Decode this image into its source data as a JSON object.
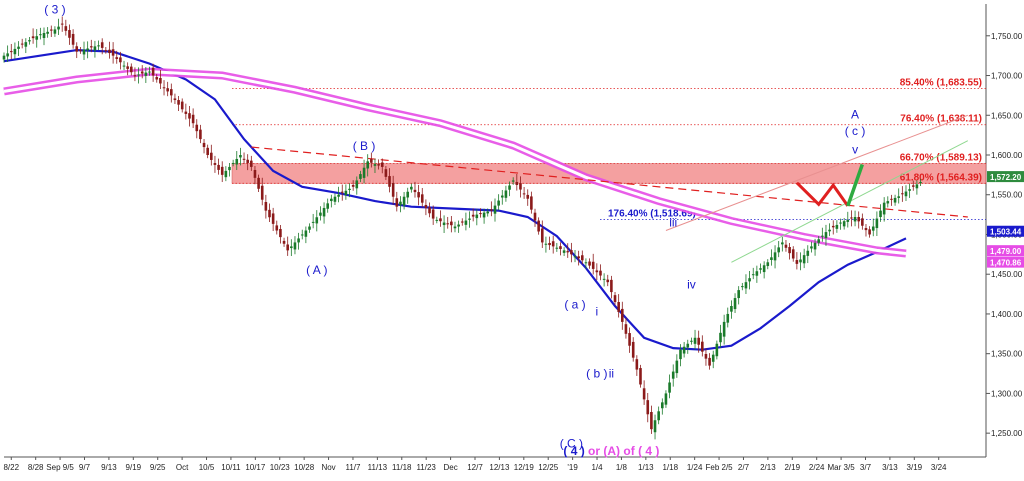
{
  "chart_data": {
    "type": "candlestick",
    "title": "",
    "xlabel": "",
    "ylabel": "",
    "ylim": [
      1220,
      1790
    ],
    "y_ticks": [
      1250,
      1300,
      1350,
      1400,
      1450,
      1500,
      1550,
      1600,
      1650,
      1700,
      1750
    ],
    "y_tick_labels": [
      "1,250.00",
      "1,300.00",
      "1,350.00",
      "1,400.00",
      "1,450.00",
      "1,500.00",
      "1,550.00",
      "1,600.00",
      "1,650.00",
      "1,700.00",
      "1,750.00"
    ],
    "x_tick_labels": [
      "8/22",
      "8/28",
      "Sep 9/5",
      "9/7",
      "9/13",
      "9/19",
      "9/25",
      "Oct",
      "10/5",
      "10/11",
      "10/17",
      "10/23",
      "10/28",
      "Nov",
      "11/7",
      "11/13",
      "11/18",
      "11/23",
      "Dec",
      "12/7",
      "12/13",
      "12/19",
      "12/25",
      "'19",
      "1/4",
      "1/8",
      "1/13",
      "1/18",
      "1/24",
      "Feb 2/5",
      "2/7",
      "2/13",
      "2/19",
      "2/24",
      "Mar 3/5",
      "3/7",
      "3/13",
      "3/19",
      "3/24"
    ],
    "price_path": [
      [
        0,
        1725
      ],
      [
        6,
        1742
      ],
      [
        10,
        1752
      ],
      [
        14,
        1758
      ],
      [
        16,
        1765
      ],
      [
        20,
        1730
      ],
      [
        26,
        1738
      ],
      [
        30,
        1725
      ],
      [
        36,
        1700
      ],
      [
        40,
        1705
      ],
      [
        46,
        1675
      ],
      [
        52,
        1640
      ],
      [
        56,
        1600
      ],
      [
        60,
        1575
      ],
      [
        65,
        1600
      ],
      [
        68,
        1585
      ],
      [
        72,
        1530
      ],
      [
        78,
        1480
      ],
      [
        84,
        1510
      ],
      [
        90,
        1545
      ],
      [
        96,
        1560
      ],
      [
        100,
        1592
      ],
      [
        104,
        1585
      ],
      [
        108,
        1535
      ],
      [
        112,
        1560
      ],
      [
        118,
        1520
      ],
      [
        124,
        1510
      ],
      [
        130,
        1525
      ],
      [
        134,
        1530
      ],
      [
        140,
        1568
      ],
      [
        144,
        1545
      ],
      [
        148,
        1490
      ],
      [
        154,
        1480
      ],
      [
        160,
        1465
      ],
      [
        166,
        1440
      ],
      [
        170,
        1390
      ],
      [
        174,
        1330
      ],
      [
        178,
        1255
      ],
      [
        182,
        1300
      ],
      [
        186,
        1355
      ],
      [
        190,
        1370
      ],
      [
        194,
        1335
      ],
      [
        198,
        1390
      ],
      [
        202,
        1430
      ],
      [
        206,
        1450
      ],
      [
        210,
        1465
      ],
      [
        214,
        1490
      ],
      [
        218,
        1463
      ],
      [
        222,
        1485
      ],
      [
        226,
        1503
      ],
      [
        230,
        1515
      ],
      [
        234,
        1522
      ],
      [
        238,
        1500
      ],
      [
        242,
        1540
      ],
      [
        246,
        1548
      ],
      [
        250,
        1560
      ],
      [
        252,
        1566
      ]
    ],
    "series": [
      {
        "name": "",
        "color": "#1a1acc",
        "values": [
          [
            0,
            1718
          ],
          [
            20,
            1732
          ],
          [
            30,
            1730
          ],
          [
            40,
            1715
          ],
          [
            50,
            1695
          ],
          [
            58,
            1670
          ],
          [
            66,
            1620
          ],
          [
            74,
            1580
          ],
          [
            82,
            1560
          ],
          [
            92,
            1552
          ],
          [
            102,
            1542
          ],
          [
            112,
            1535
          ],
          [
            126,
            1532
          ],
          [
            136,
            1530
          ],
          [
            144,
            1522
          ],
          [
            152,
            1498
          ],
          [
            160,
            1458
          ],
          [
            168,
            1410
          ],
          [
            176,
            1370
          ],
          [
            184,
            1357
          ],
          [
            192,
            1355
          ],
          [
            200,
            1360
          ],
          [
            208,
            1382
          ],
          [
            216,
            1410
          ],
          [
            224,
            1440
          ],
          [
            232,
            1462
          ],
          [
            240,
            1478
          ],
          [
            248,
            1495
          ]
        ]
      },
      {
        "name": "",
        "color": "#e64ce6",
        "values": [
          [
            0,
            1680
          ],
          [
            20,
            1695
          ],
          [
            40,
            1705
          ],
          [
            60,
            1700
          ],
          [
            80,
            1682
          ],
          [
            100,
            1660
          ],
          [
            120,
            1640
          ],
          [
            140,
            1612
          ],
          [
            160,
            1572
          ],
          [
            180,
            1542
          ],
          [
            200,
            1517
          ],
          [
            220,
            1497
          ],
          [
            240,
            1480
          ],
          [
            248,
            1476
          ]
        ]
      }
    ],
    "fib_levels": [
      {
        "label": "85.40% (1,683.55)",
        "value": 1683.55,
        "color": "#e02020"
      },
      {
        "label": "76.40% (1,638.11)",
        "value": 1638.11,
        "color": "#e02020"
      },
      {
        "label": "66.70% (1,589.13)",
        "value": 1589.13,
        "color": "#e02020"
      },
      {
        "label": "61.80% (1,564.39)",
        "value": 1564.39,
        "color": "#e02020"
      },
      {
        "label": "176.40% (1,518.69)",
        "value": 1518.69,
        "color": "#1a1acc"
      }
    ],
    "resistance_zone": {
      "from": 1564.39,
      "to": 1589.13,
      "color": "#f08080"
    },
    "price_badges": [
      {
        "text": "1,572.20",
        "value": 1572.2,
        "color": "#2e8b3e"
      },
      {
        "text": "1,503.44",
        "value": 1503.44,
        "color": "#1a1acc"
      },
      {
        "text": "1,479.00",
        "value": 1479.0,
        "color": "#e64ce6"
      },
      {
        "text": "1,470.86",
        "value": 1470.86,
        "color": "#e64ce6"
      }
    ],
    "wave_labels": [
      {
        "text": "( 3 )",
        "x": 14,
        "y": 1778,
        "color": "#1a1acc"
      },
      {
        "text": "( A )",
        "x": 86,
        "y": 1450,
        "color": "#1a1acc"
      },
      {
        "text": "( B )",
        "x": 99,
        "y": 1606,
        "color": "#1a1acc"
      },
      {
        "text": "( C )",
        "x": 156,
        "y": 1232,
        "color": "#1a1acc"
      },
      {
        "text": "( a )",
        "x": 157,
        "y": 1407,
        "color": "#1a1acc"
      },
      {
        "text": "i",
        "x": 163,
        "y": 1398,
        "color": "#1a1acc"
      },
      {
        "text": "( b )",
        "x": 163,
        "y": 1320,
        "color": "#1a1acc"
      },
      {
        "text": "ii",
        "x": 167,
        "y": 1320,
        "color": "#1a1acc"
      },
      {
        "text": "iii",
        "x": 184,
        "y": 1510,
        "color": "#1a1acc"
      },
      {
        "text": "iv",
        "x": 189,
        "y": 1432,
        "color": "#1a1acc"
      },
      {
        "text": "A",
        "x": 234,
        "y": 1646,
        "color": "#1a1acc"
      },
      {
        "text": "( c )",
        "x": 234,
        "y": 1625,
        "color": "#1a1acc"
      },
      {
        "text": "v",
        "x": 234,
        "y": 1602,
        "color": "#1a1acc"
      }
    ],
    "bottom_annotation": [
      {
        "text": "( 4 )",
        "color": "#1a1acc"
      },
      {
        "text": " or ",
        "color": "#e64ce6"
      },
      {
        "text": "(A)",
        "color": "#e64ce6"
      },
      {
        "text": " of ",
        "color": "#e64ce6"
      },
      {
        "text": "( 4 )",
        "color": "#e64ce6"
      }
    ],
    "trendlines": [
      {
        "kind": "dashed",
        "color": "#e02020",
        "from": [
          68,
          1610
        ],
        "to": [
          265,
          1522
        ]
      },
      {
        "kind": "solid",
        "color": "#e89090",
        "from": [
          182,
          1505
        ],
        "to": [
          265,
          1650
        ]
      },
      {
        "kind": "solid",
        "color": "#8fd890",
        "from": [
          200,
          1465
        ],
        "to": [
          265,
          1618
        ]
      }
    ],
    "projection": {
      "red_path": [
        [
          218,
          1565
        ],
        [
          224,
          1538
        ],
        [
          228,
          1562
        ],
        [
          232,
          1536
        ]
      ],
      "green_path": [
        [
          232,
          1536
        ],
        [
          236,
          1588
        ]
      ],
      "red_color": "#e02020",
      "green_color": "#2eaa40"
    }
  }
}
